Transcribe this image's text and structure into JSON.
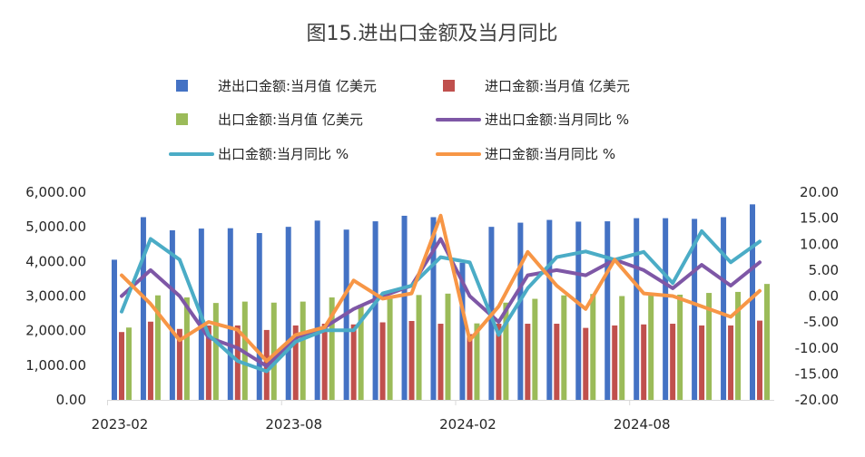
{
  "chart_data": {
    "type": "bar",
    "title": "图15.进出口金额及当月同比",
    "x": [
      "2023-02",
      "2023-03",
      "2023-04",
      "2023-05",
      "2023-06",
      "2023-07",
      "2023-08",
      "2023-09",
      "2023-10",
      "2023-11",
      "2023-12",
      "2024-01",
      "2024-02",
      "2024-03",
      "2024-04",
      "2024-05",
      "2024-06",
      "2024-07",
      "2024-08",
      "2024-09",
      "2024-10",
      "2024-11",
      "2024-12"
    ],
    "x_tick_labels": [
      "2023-02",
      "2023-08",
      "2024-02",
      "2024-08"
    ],
    "y_left": {
      "min": 0,
      "max": 6000,
      "step": 1000,
      "tick_labels": [
        "0.00",
        "1,000.00",
        "2,000.00",
        "3,000.00",
        "4,000.00",
        "5,000.00",
        "6,000.00"
      ]
    },
    "y_right": {
      "min": -20,
      "max": 20,
      "step": 5,
      "tick_labels": [
        "-20.00",
        "-15.00",
        "-10.00",
        "-5.00",
        "0.00",
        "5.00",
        "10.00",
        "15.00",
        "20.00"
      ]
    },
    "gridlines": false,
    "legend_position": "top",
    "series": [
      {
        "name": "进出口金额:当月值 亿美元",
        "kind": "bar",
        "axis": "left",
        "color": "#4472C4",
        "values": [
          4050,
          5280,
          4900,
          4950,
          4960,
          4820,
          5000,
          5180,
          4920,
          5160,
          5320,
          5280,
          3960,
          5000,
          5120,
          5200,
          5150,
          5160,
          5250,
          5250,
          5230,
          5280,
          5650
        ]
      },
      {
        "name": "进口金额:当月值 亿美元",
        "kind": "bar",
        "axis": "left",
        "color": "#C0504D",
        "values": [
          1960,
          2260,
          2050,
          2150,
          2150,
          2020,
          2150,
          2200,
          2180,
          2240,
          2280,
          2200,
          1900,
          2200,
          2200,
          2200,
          2080,
          2150,
          2180,
          2200,
          2150,
          2150,
          2290
        ]
      },
      {
        "name": "出口金额:当月值 亿美元",
        "kind": "bar",
        "axis": "left",
        "color": "#9BBB59",
        "values": [
          2090,
          3020,
          2960,
          2800,
          2840,
          2810,
          2840,
          2960,
          2750,
          2920,
          3030,
          3070,
          2210,
          2810,
          2920,
          3020,
          3060,
          3000,
          3090,
          3040,
          3090,
          3120,
          3350
        ]
      },
      {
        "name": "进出口金额:当月同比 %",
        "kind": "line",
        "axis": "right",
        "color": "#7E57A6",
        "values": [
          0.0,
          5.0,
          0.0,
          -8.0,
          -10.0,
          -13.5,
          -8.0,
          -6.0,
          -2.5,
          0.0,
          2.0,
          11.0,
          0.0,
          -5.0,
          4.0,
          5.0,
          4.0,
          7.0,
          5.0,
          1.5,
          6.0,
          2.0,
          6.5
        ]
      },
      {
        "name": "出口金额:当月同比 %",
        "kind": "line",
        "axis": "right",
        "color": "#4BACC6",
        "values": [
          -3.0,
          11.0,
          7.0,
          -7.5,
          -12.5,
          -14.5,
          -8.8,
          -6.6,
          -6.6,
          0.5,
          2.0,
          7.5,
          6.5,
          -7.5,
          1.5,
          7.5,
          8.6,
          7.0,
          8.5,
          2.5,
          12.5,
          6.5,
          10.5
        ]
      },
      {
        "name": "进口金额:当月同比 %",
        "kind": "line",
        "axis": "right",
        "color": "#F79646",
        "values": [
          4.0,
          -1.5,
          -8.5,
          -5.0,
          -6.5,
          -12.5,
          -7.5,
          -6.0,
          3.0,
          -0.5,
          0.5,
          15.5,
          -8.5,
          -2.0,
          8.5,
          2.0,
          -2.5,
          7.0,
          0.5,
          0.0,
          -2.0,
          -4.0,
          1.0
        ]
      }
    ]
  }
}
